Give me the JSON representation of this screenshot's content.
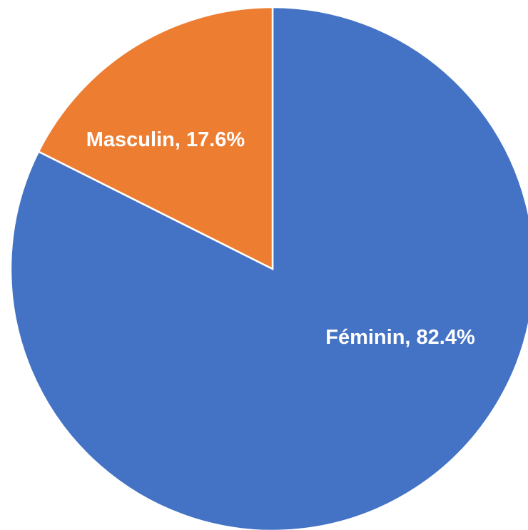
{
  "chart_data": {
    "type": "pie",
    "categories": [
      "Féminin",
      "Masculin"
    ],
    "values": [
      82.4,
      17.6
    ],
    "value_labels": [
      "82.4%",
      "17.6%"
    ],
    "label_separator": ", ",
    "colors": [
      "#4472c4",
      "#ed7d31"
    ]
  }
}
